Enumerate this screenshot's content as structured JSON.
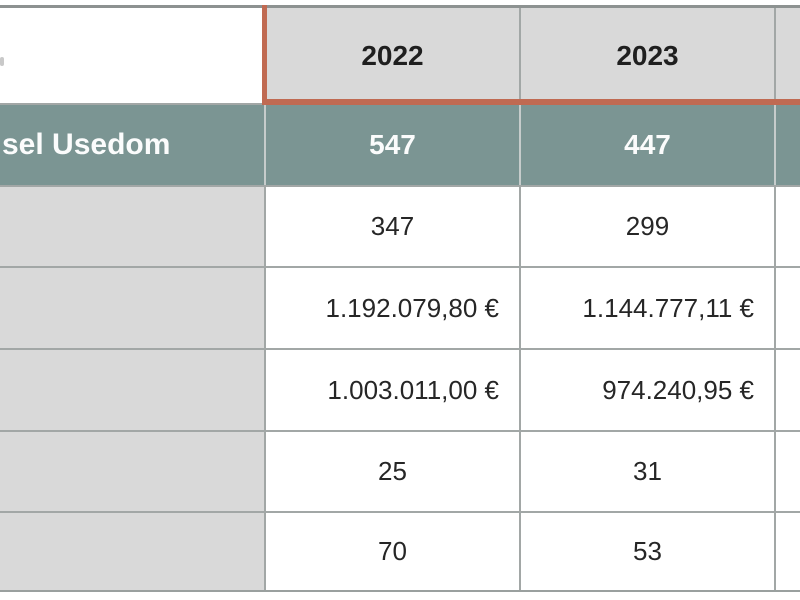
{
  "table": {
    "description": "Cropped statistics table comparing years",
    "colors": {
      "accent_orange": "#c06a52",
      "highlight_teal": "#7b9593",
      "header_gray": "#d9d9d9",
      "label_gray": "#d9d9d9",
      "grid_line": "#a2a7a6"
    },
    "header": {
      "label_column": "",
      "years": [
        "2022",
        "2023"
      ]
    },
    "rows": [
      {
        "label": "sel Usedom",
        "style": "highlight",
        "values": [
          "547",
          "447"
        ]
      },
      {
        "label": "",
        "style": "number",
        "values": [
          "347",
          "299"
        ]
      },
      {
        "label": "",
        "style": "currency",
        "values": [
          "1.192.079,80 €",
          "1.144.777,11 €"
        ]
      },
      {
        "label": "",
        "style": "currency",
        "values": [
          "1.003.011,00 €",
          "974.240,95 €"
        ]
      },
      {
        "label": "",
        "style": "number",
        "values": [
          "25",
          "31"
        ]
      },
      {
        "label": "",
        "style": "number",
        "values": [
          "70",
          "53"
        ]
      }
    ],
    "partial_fourth_column": ""
  }
}
